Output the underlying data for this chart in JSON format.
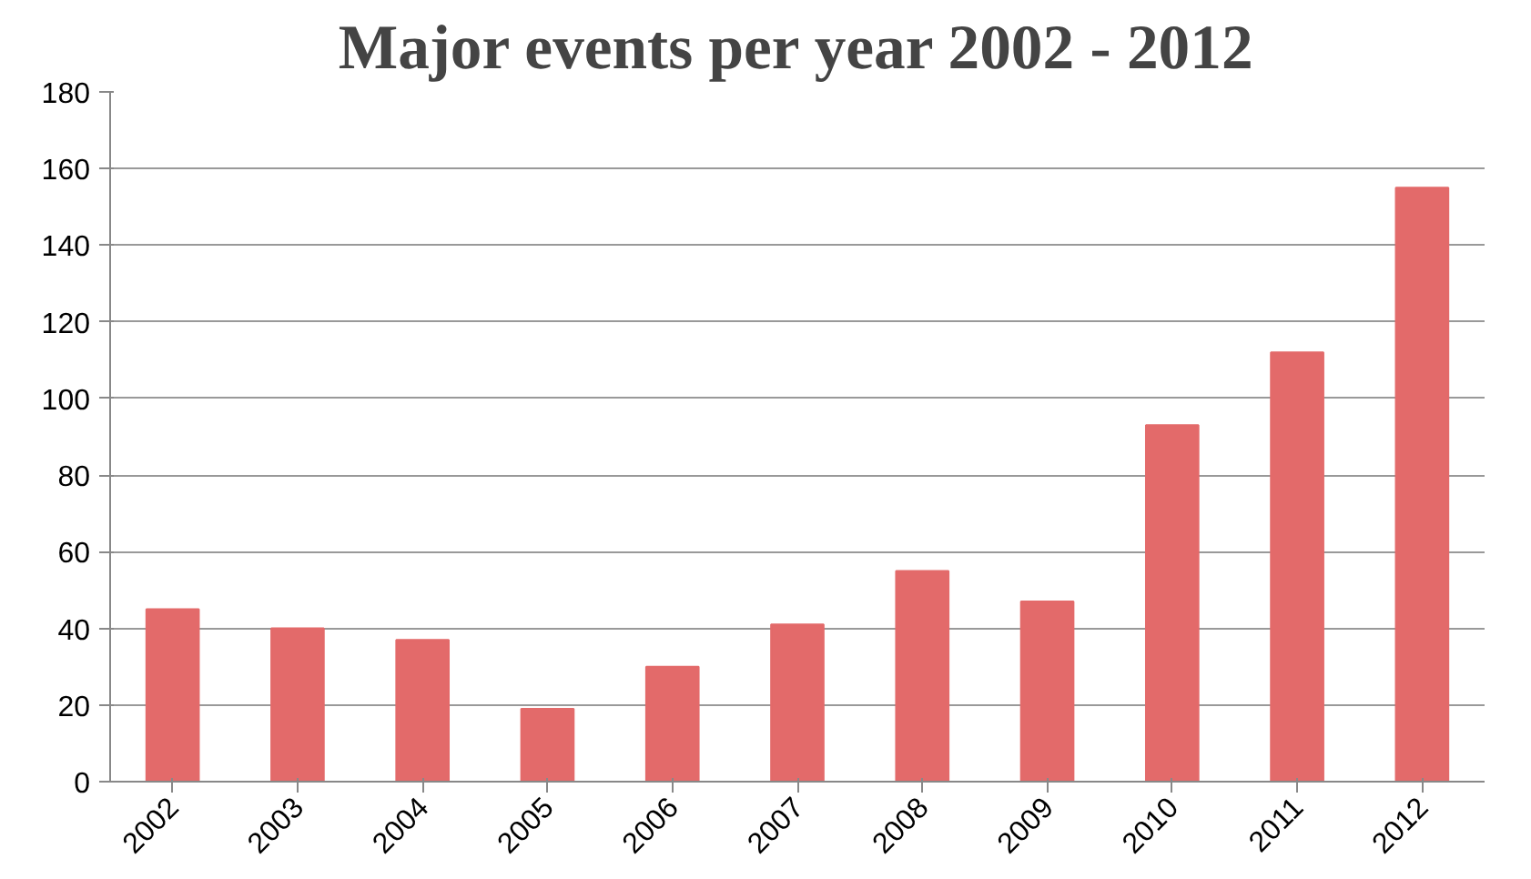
{
  "chart_data": {
    "type": "bar",
    "title": "Major events per year 2002 - 2012",
    "categories": [
      "2002",
      "2003",
      "2004",
      "2005",
      "2006",
      "2007",
      "2008",
      "2009",
      "2010",
      "2011",
      "2012"
    ],
    "values": [
      45,
      40,
      37,
      19,
      30,
      41,
      55,
      47,
      93,
      112,
      155
    ],
    "color": "#e36a6a",
    "ylim": [
      0,
      180
    ],
    "yticks": [
      0,
      20,
      40,
      60,
      80,
      100,
      120,
      140,
      160,
      180
    ],
    "grid": "y"
  }
}
